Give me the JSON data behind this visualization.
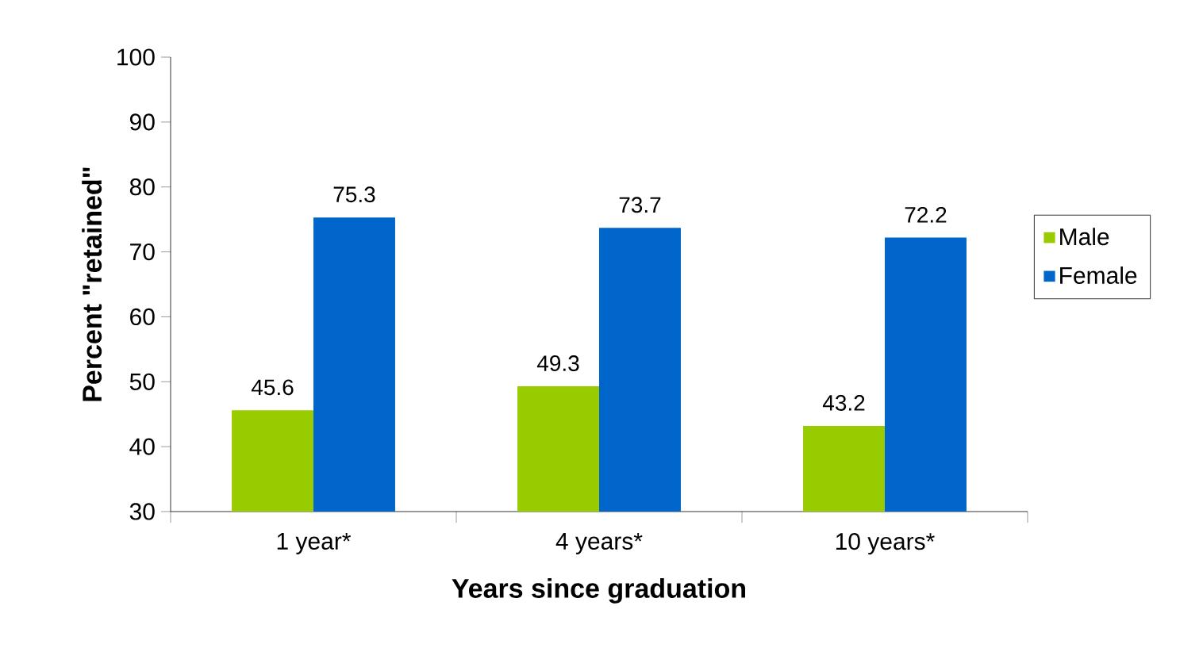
{
  "chart_data": {
    "type": "bar",
    "xlabel": "Years since graduation",
    "ylabel": "Percent \"retained\"",
    "categories": [
      "1 year*",
      "4 years*",
      "10 years*"
    ],
    "series": [
      {
        "name": "Male",
        "color": "#99cc00",
        "values": [
          45.6,
          49.3,
          43.2
        ]
      },
      {
        "name": "Female",
        "color": "#0066cc",
        "values": [
          75.3,
          73.7,
          72.2
        ]
      }
    ],
    "ylim": [
      30,
      100
    ],
    "yticks": [
      30,
      40,
      50,
      60,
      70,
      80,
      90,
      100
    ],
    "data_labels": true,
    "legend": "right",
    "grid": false
  }
}
